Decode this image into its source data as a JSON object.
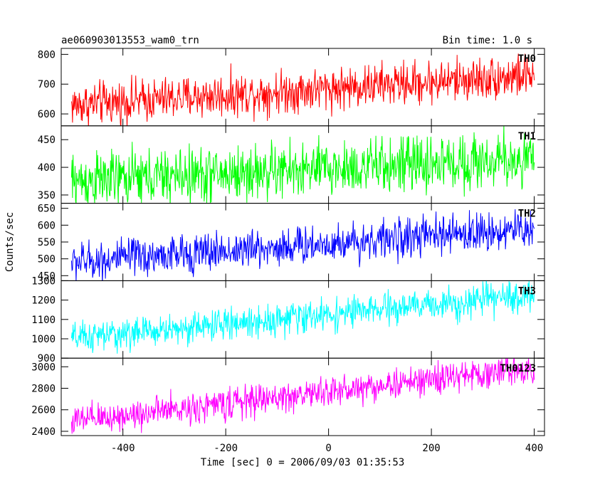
{
  "header": {
    "title": "ae060903013553_wam0_trn",
    "bin_time": "Bin time: 1.0 s"
  },
  "chart_data": {
    "type": "line",
    "title": "ae060903013553_wam0_trn",
    "xlabel": "Time [sec] 0 = 2006/09/03 01:35:53",
    "ylabel": "Counts/sec",
    "xlim": [
      -520,
      420
    ],
    "x_ticks": [
      -400,
      -200,
      0,
      200,
      400
    ],
    "x_tick_labels": [
      "-400",
      "-200",
      "0",
      "200",
      "400"
    ],
    "sampling": {
      "x_start": -500,
      "x_end": 400,
      "step": 1
    },
    "grid": false,
    "legend": "none",
    "panels": [
      {
        "name": "TH0",
        "color": "#ff0000",
        "ylim": [
          560,
          820
        ],
        "y_ticks": [
          600,
          700,
          800
        ],
        "y_tick_labels": [
          "600",
          "700",
          "800"
        ],
        "trend": {
          "start": 630,
          "end": 730
        },
        "noise_amplitude": 40
      },
      {
        "name": "TH1",
        "color": "#00ff00",
        "ylim": [
          335,
          475
        ],
        "y_ticks": [
          350,
          400,
          450
        ],
        "y_tick_labels": [
          "350",
          "400",
          "450"
        ],
        "trend": {
          "start": 375,
          "end": 415
        },
        "noise_amplitude": 28
      },
      {
        "name": "TH2",
        "color": "#0000ff",
        "ylim": [
          435,
          665
        ],
        "y_ticks": [
          450,
          500,
          550,
          600,
          650
        ],
        "y_tick_labels": [
          "450",
          "500",
          "550",
          "600",
          "650"
        ],
        "trend": {
          "start": 490,
          "end": 590
        },
        "noise_amplitude": 32
      },
      {
        "name": "TH3",
        "color": "#00ffff",
        "ylim": [
          900,
          1300
        ],
        "y_ticks": [
          900,
          1000,
          1100,
          1200,
          1300
        ],
        "y_tick_labels": [
          "900",
          "1000",
          "1100",
          "1200",
          "1300"
        ],
        "trend": {
          "start": 1000,
          "end": 1225
        },
        "noise_amplitude": 45
      },
      {
        "name": "TH0123",
        "color": "#ff00ff",
        "ylim": [
          2360,
          3080
        ],
        "y_ticks": [
          2400,
          2600,
          2800,
          3000
        ],
        "y_tick_labels": [
          "2400",
          "2600",
          "2800",
          "3000"
        ],
        "trend": {
          "start": 2490,
          "end": 2990
        },
        "noise_amplitude": 80
      }
    ]
  }
}
